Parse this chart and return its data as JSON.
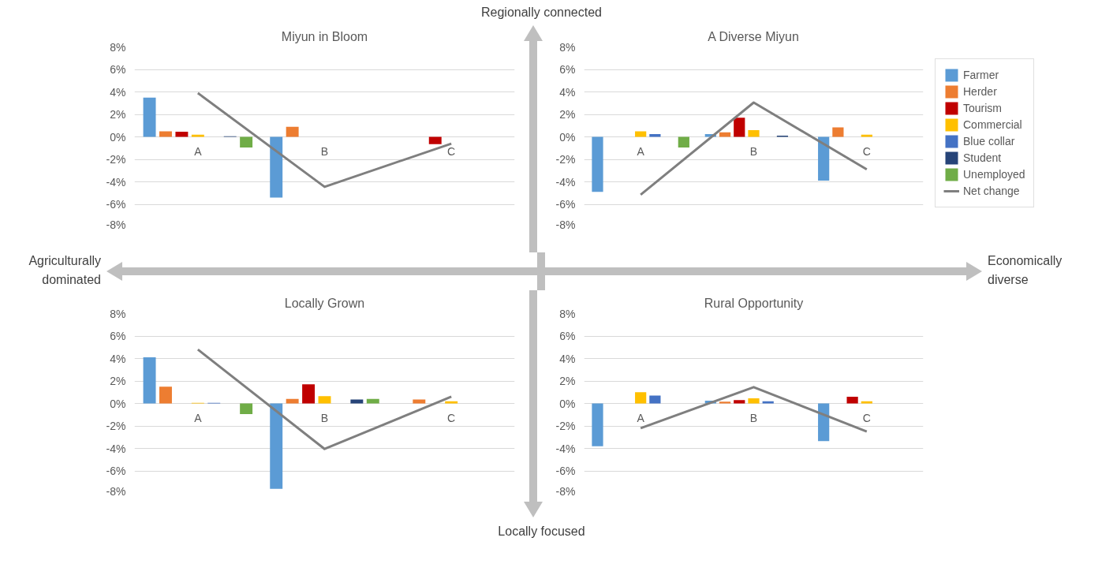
{
  "chart_data": [
    {
      "type": "bar",
      "title": "Miyun in Bloom",
      "categories": [
        "A",
        "B",
        "C"
      ],
      "ylim": [
        -8,
        8
      ],
      "yticks": [
        {
          "value": -8,
          "label": "-8%"
        },
        {
          "value": -6,
          "label": "-6%"
        },
        {
          "value": -4,
          "label": "-4%"
        },
        {
          "value": -2,
          "label": "-2%"
        },
        {
          "value": 0,
          "label": "0%"
        },
        {
          "value": 2,
          "label": "2%"
        },
        {
          "value": 4,
          "label": "4%"
        },
        {
          "value": 6,
          "label": "6%"
        },
        {
          "value": 8,
          "label": "8%"
        }
      ],
      "grid": "y",
      "annotations": [
        "Regionally connected",
        "Agriculturally dominated",
        "Economically diverse",
        "Locally focused"
      ],
      "series": [
        {
          "color": "#5b9bd5",
          "values": [
            3.5,
            -5.4,
            null
          ]
        },
        {
          "color": "#ed7d31",
          "values": [
            0.5,
            0.9,
            null
          ]
        },
        {
          "color": "#c00000",
          "values": [
            0.45,
            null,
            -0.65
          ]
        },
        {
          "color": "#ffc000",
          "values": [
            0.2,
            null,
            null
          ]
        },
        {
          "color": "#4472c4",
          "values": [
            null,
            null,
            null
          ]
        },
        {
          "color": "#264478",
          "values": [
            0.05,
            null,
            null
          ]
        },
        {
          "color": "#70ad47",
          "values": [
            -0.95,
            null,
            null
          ]
        },
        {
          "color": "#7f7f7f",
          "type": "line",
          "values": [
            3.9,
            -4.45,
            -0.6
          ]
        }
      ]
    },
    {
      "type": "bar",
      "title": "A Diverse Miyun",
      "categories": [
        "A",
        "B",
        "C"
      ],
      "ylim": [
        -8,
        8
      ],
      "yticks": [
        {
          "value": -8,
          "label": "-8%"
        },
        {
          "value": -6,
          "label": "-6%"
        },
        {
          "value": -4,
          "label": "-4%"
        },
        {
          "value": -2,
          "label": "-2%"
        },
        {
          "value": 0,
          "label": "0%"
        },
        {
          "value": 2,
          "label": "2%"
        },
        {
          "value": 4,
          "label": "4%"
        },
        {
          "value": 6,
          "label": "6%"
        },
        {
          "value": 8,
          "label": "8%"
        }
      ],
      "grid": "y",
      "legend": "right",
      "series": [
        {
          "name": "Farmer",
          "color": "#5b9bd5",
          "values": [
            -4.9,
            0.25,
            -3.9
          ]
        },
        {
          "name": "Herder",
          "color": "#ed7d31",
          "values": [
            null,
            0.4,
            0.85
          ]
        },
        {
          "name": "Tourism",
          "color": "#c00000",
          "values": [
            null,
            1.7,
            null
          ]
        },
        {
          "name": "Commercial",
          "color": "#ffc000",
          "values": [
            0.5,
            0.6,
            0.2
          ]
        },
        {
          "name": "Blue collar",
          "color": "#4472c4",
          "values": [
            0.25,
            null,
            null
          ]
        },
        {
          "name": "Student",
          "color": "#264478",
          "values": [
            null,
            0.1,
            null
          ]
        },
        {
          "name": "Unemployed",
          "color": "#70ad47",
          "values": [
            -0.95,
            null,
            null
          ]
        },
        {
          "name": "Net change",
          "color": "#7f7f7f",
          "type": "line",
          "values": [
            -5.15,
            3.05,
            -2.9
          ]
        }
      ]
    },
    {
      "type": "bar",
      "title": "Locally Grown",
      "categories": [
        "A",
        "B",
        "C"
      ],
      "ylim": [
        -8,
        8
      ],
      "yticks": [
        {
          "value": -8,
          "label": "-8%"
        },
        {
          "value": -6,
          "label": "-6%"
        },
        {
          "value": -4,
          "label": "-4%"
        },
        {
          "value": -2,
          "label": "-2%"
        },
        {
          "value": 0,
          "label": "0%"
        },
        {
          "value": 2,
          "label": "2%"
        },
        {
          "value": 4,
          "label": "4%"
        },
        {
          "value": 6,
          "label": "6%"
        },
        {
          "value": 8,
          "label": "8%"
        }
      ],
      "grid": "y",
      "series": [
        {
          "color": "#5b9bd5",
          "values": [
            4.1,
            -7.6,
            null
          ]
        },
        {
          "color": "#ed7d31",
          "values": [
            1.5,
            0.4,
            0.35
          ]
        },
        {
          "color": "#c00000",
          "values": [
            null,
            1.7,
            null
          ]
        },
        {
          "color": "#ffc000",
          "values": [
            0.05,
            0.65,
            0.2
          ]
        },
        {
          "color": "#4472c4",
          "values": [
            0.05,
            null,
            null
          ]
        },
        {
          "color": "#264478",
          "values": [
            null,
            0.35,
            null
          ]
        },
        {
          "color": "#70ad47",
          "values": [
            -0.95,
            0.4,
            null
          ]
        },
        {
          "color": "#7f7f7f",
          "type": "line",
          "values": [
            4.8,
            -4.05,
            0.6
          ]
        }
      ]
    },
    {
      "type": "bar",
      "title": "Rural Opportunity",
      "categories": [
        "A",
        "B",
        "C"
      ],
      "ylim": [
        -8,
        8
      ],
      "yticks": [
        {
          "value": -8,
          "label": "-8%"
        },
        {
          "value": -6,
          "label": "-6%"
        },
        {
          "value": -4,
          "label": "-4%"
        },
        {
          "value": -2,
          "label": "-2%"
        },
        {
          "value": 0,
          "label": "0%"
        },
        {
          "value": 2,
          "label": "2%"
        },
        {
          "value": 4,
          "label": "4%"
        },
        {
          "value": 6,
          "label": "6%"
        },
        {
          "value": 8,
          "label": "8%"
        }
      ],
      "grid": "y",
      "series": [
        {
          "color": "#5b9bd5",
          "values": [
            -3.8,
            0.25,
            -3.35
          ]
        },
        {
          "color": "#ed7d31",
          "values": [
            null,
            0.15,
            null
          ]
        },
        {
          "color": "#c00000",
          "values": [
            null,
            0.3,
            0.6
          ]
        },
        {
          "color": "#ffc000",
          "values": [
            1.0,
            0.45,
            0.2
          ]
        },
        {
          "color": "#4472c4",
          "values": [
            0.7,
            0.2,
            null
          ]
        },
        {
          "color": "#264478",
          "values": [
            null,
            null,
            null
          ]
        },
        {
          "color": "#70ad47",
          "values": [
            null,
            null,
            null
          ]
        },
        {
          "color": "#7f7f7f",
          "type": "line",
          "values": [
            -2.2,
            1.45,
            -2.5
          ]
        }
      ]
    }
  ]
}
